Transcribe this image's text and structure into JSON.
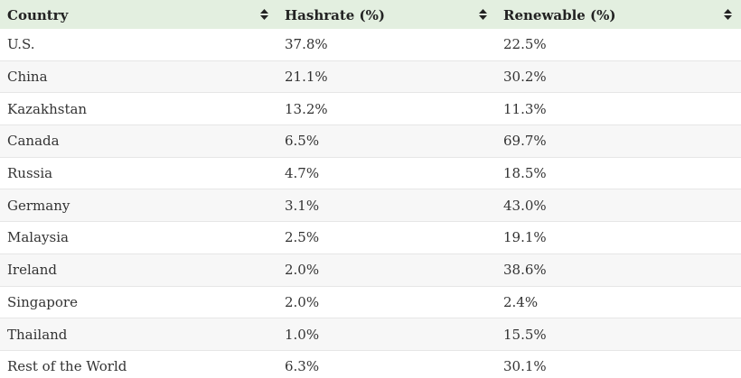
{
  "table": {
    "headers": [
      {
        "label": "Country",
        "sort_icon": "sort-icon"
      },
      {
        "label": "Hashrate (%)",
        "sort_icon": "sort-icon"
      },
      {
        "label": "Renewable (%)",
        "sort_icon": "sort-icon"
      }
    ],
    "rows": [
      [
        "U.S.",
        "37.8%",
        "22.5%"
      ],
      [
        "China",
        "21.1%",
        "30.2%"
      ],
      [
        "Kazakhstan",
        "13.2%",
        "11.3%"
      ],
      [
        "Canada",
        "6.5%",
        "69.7%"
      ],
      [
        "Russia",
        "4.7%",
        "18.5%"
      ],
      [
        "Germany",
        "3.1%",
        "43.0%"
      ],
      [
        "Malaysia",
        "2.5%",
        "19.1%"
      ],
      [
        "Ireland",
        "2.0%",
        "38.6%"
      ],
      [
        "Singapore",
        "2.0%",
        "2.4%"
      ],
      [
        "Thailand",
        "1.0%",
        "15.5%"
      ],
      [
        "Rest of the World",
        "6.3%",
        "30.1%"
      ]
    ]
  },
  "colors": {
    "header_bg": "#e3efe0",
    "row_alt_bg": "#f7f7f7",
    "row_bg": "#ffffff",
    "divider": "#e6e6e6"
  }
}
